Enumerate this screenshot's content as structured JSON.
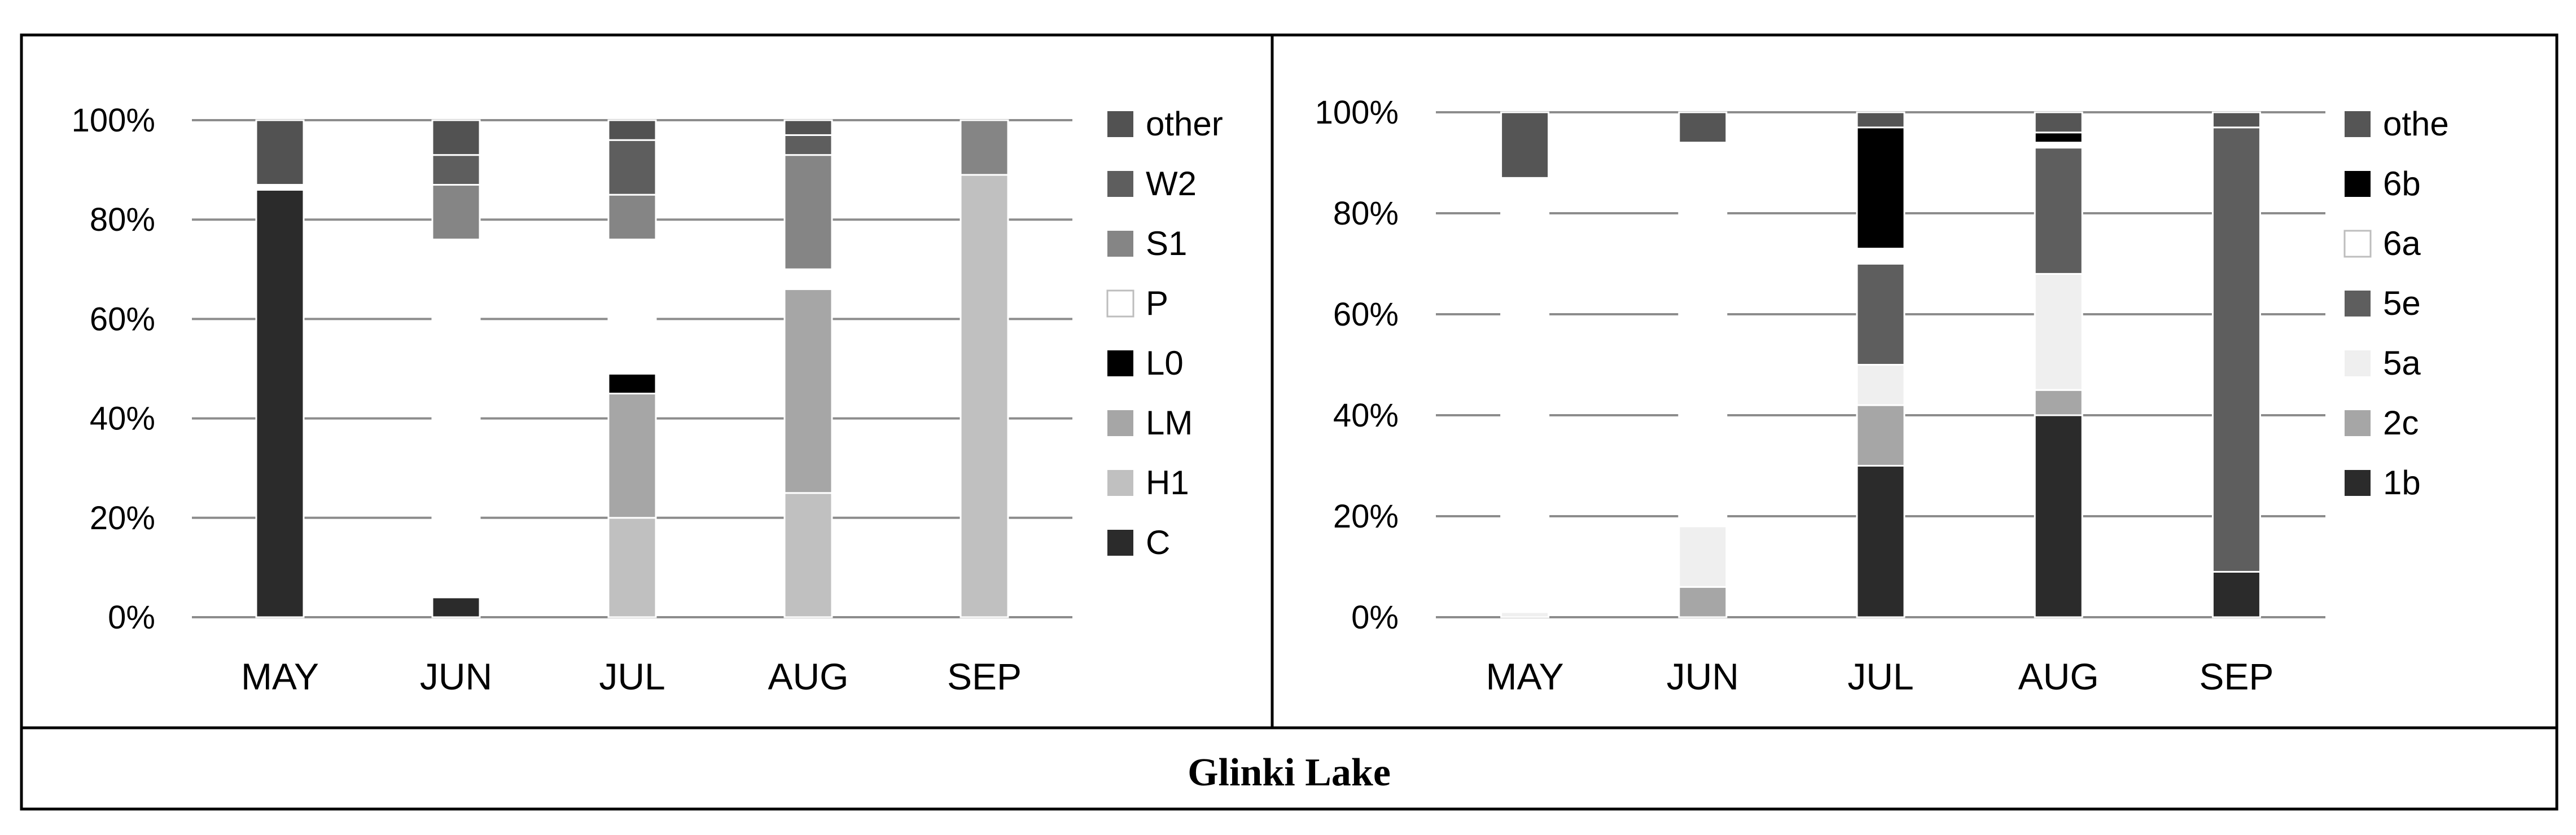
{
  "caption": "Glinki Lake",
  "chart_data": [
    {
      "type": "bar",
      "stacked": true,
      "categories": [
        "MAY",
        "JUN",
        "JUL",
        "AUG",
        "SEP"
      ],
      "ylim": [
        0,
        100
      ],
      "y_ticks": [
        "0%",
        "20%",
        "40%",
        "60%",
        "80%",
        "100%"
      ],
      "grid": true,
      "legend_position": "right",
      "series": [
        {
          "name": "C",
          "color": "#2b2b2b",
          "values": [
            86,
            4,
            0,
            0,
            0
          ]
        },
        {
          "name": "H1",
          "color": "#c0c0c0",
          "values": [
            0,
            0,
            20,
            25,
            89
          ]
        },
        {
          "name": "LM",
          "color": "#a6a6a6",
          "values": [
            0,
            0,
            25,
            41,
            0
          ]
        },
        {
          "name": "L0",
          "color": "#000000",
          "values": [
            0,
            0,
            4,
            0,
            0
          ]
        },
        {
          "name": "P",
          "color": "#ffffff",
          "values": [
            1,
            72,
            27,
            4,
            0
          ]
        },
        {
          "name": "S1",
          "color": "#858585",
          "values": [
            0,
            11,
            9,
            23,
            11
          ]
        },
        {
          "name": "W2",
          "color": "#5e5e5e",
          "values": [
            0,
            6,
            11,
            4,
            0
          ]
        },
        {
          "name": "other",
          "color": "#525252",
          "values": [
            13,
            7,
            4,
            3,
            0
          ]
        }
      ]
    },
    {
      "type": "bar",
      "stacked": true,
      "categories": [
        "MAY",
        "JUN",
        "JUL",
        "AUG",
        "SEP"
      ],
      "ylim": [
        0,
        100
      ],
      "y_ticks": [
        "0%",
        "20%",
        "40%",
        "60%",
        "80%",
        "100%"
      ],
      "grid": true,
      "legend_position": "right",
      "series": [
        {
          "name": "1b",
          "color": "#2b2b2b",
          "values": [
            0,
            0,
            30,
            40,
            9
          ]
        },
        {
          "name": "2c",
          "color": "#a6a6a6",
          "values": [
            0,
            6,
            12,
            5,
            0
          ]
        },
        {
          "name": "5a",
          "color": "#efefef",
          "values": [
            1,
            12,
            8,
            23,
            0
          ]
        },
        {
          "name": "5e",
          "color": "#5e5e5e",
          "values": [
            0,
            0,
            20,
            25,
            88
          ]
        },
        {
          "name": "6a",
          "color": "#ffffff",
          "values": [
            86,
            76,
            3,
            1,
            0
          ]
        },
        {
          "name": "6b",
          "color": "#000000",
          "values": [
            0,
            0,
            24,
            2,
            0
          ]
        },
        {
          "name": "othe",
          "color": "#555555",
          "values": [
            13,
            6,
            3,
            4,
            3
          ]
        }
      ]
    }
  ]
}
